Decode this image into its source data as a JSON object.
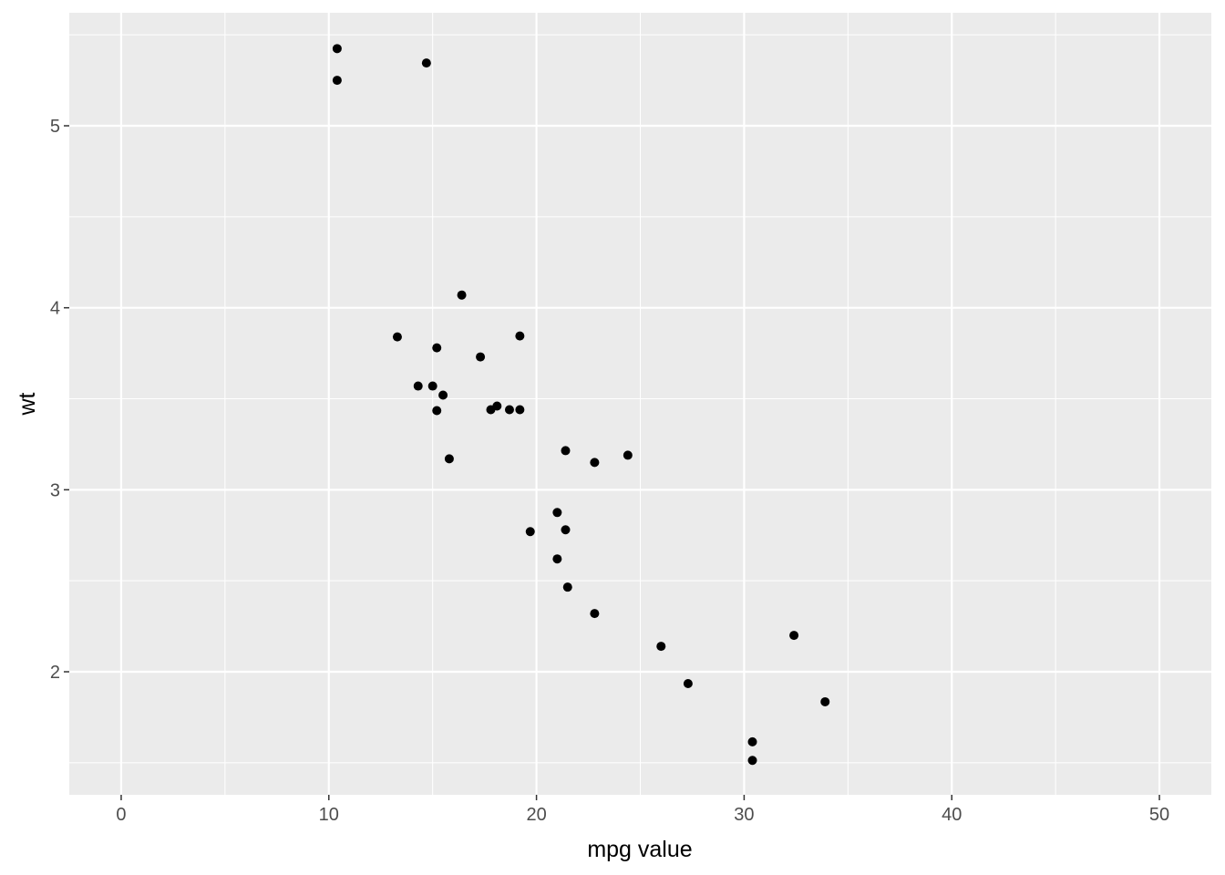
{
  "chart_data": {
    "type": "scatter",
    "xlabel": "mpg value",
    "ylabel": "wt",
    "xlim": [
      -2.5,
      52.5
    ],
    "ylim": [
      1.324,
      5.621
    ],
    "x_ticks": [
      0,
      10,
      20,
      30,
      40,
      50
    ],
    "y_ticks": [
      2,
      3,
      4,
      5
    ],
    "grid": true,
    "panel_background": "#EBEBEB",
    "grid_color": "#FFFFFF",
    "point_color": "#000000",
    "points": [
      [
        21.0,
        2.62
      ],
      [
        21.0,
        2.875
      ],
      [
        22.8,
        2.32
      ],
      [
        21.4,
        3.215
      ],
      [
        18.7,
        3.44
      ],
      [
        18.1,
        3.46
      ],
      [
        14.3,
        3.57
      ],
      [
        24.4,
        3.19
      ],
      [
        22.8,
        3.15
      ],
      [
        19.2,
        3.44
      ],
      [
        17.8,
        3.44
      ],
      [
        16.4,
        4.07
      ],
      [
        17.3,
        3.73
      ],
      [
        15.2,
        3.78
      ],
      [
        10.4,
        5.25
      ],
      [
        10.4,
        5.424
      ],
      [
        14.7,
        5.345
      ],
      [
        32.4,
        2.2
      ],
      [
        30.4,
        1.615
      ],
      [
        33.9,
        1.835
      ],
      [
        21.5,
        2.465
      ],
      [
        15.5,
        3.52
      ],
      [
        15.2,
        3.435
      ],
      [
        13.3,
        3.84
      ],
      [
        19.2,
        3.845
      ],
      [
        27.3,
        1.935
      ],
      [
        26.0,
        2.14
      ],
      [
        30.4,
        1.513
      ],
      [
        15.8,
        3.17
      ],
      [
        19.7,
        2.77
      ],
      [
        15.0,
        3.57
      ],
      [
        21.4,
        2.78
      ]
    ]
  }
}
